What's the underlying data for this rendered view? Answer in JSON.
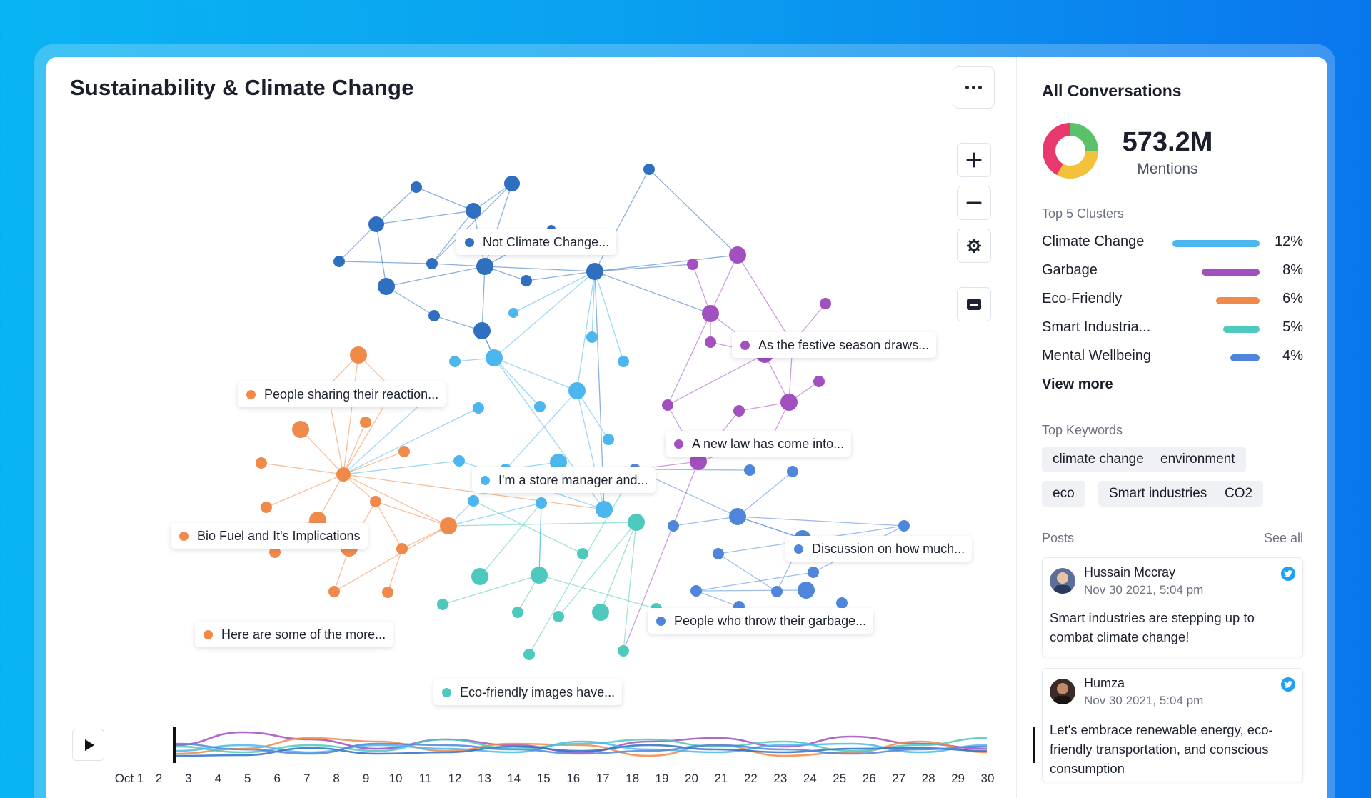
{
  "page": {
    "title": "Sustainability & Climate Change",
    "more_icon": "more-horizontal-icon"
  },
  "toolbar": {
    "zoom_in_icon": "plus-icon",
    "zoom_out_icon": "minus-icon",
    "settings_icon": "gear-icon",
    "legend_icon": "legend-card-icon"
  },
  "graph": {
    "labels": [
      {
        "text": "Not Climate Change...",
        "color": "#2f6fc0"
      },
      {
        "text": "As the festive season draws...",
        "color": "#a24fc0"
      },
      {
        "text": "People sharing their reaction...",
        "color": "#f08a4b"
      },
      {
        "text": "A new law has come into...",
        "color": "#a24fc0"
      },
      {
        "text": "I'm a store manager and...",
        "color": "#4bb7ee"
      },
      {
        "text": "Bio Fuel and It's Implications",
        "color": "#f08a4b"
      },
      {
        "text": "Discussion on how much...",
        "color": "#4f86dc"
      },
      {
        "text": "Here are some of the more...",
        "color": "#f08a4b"
      },
      {
        "text": "People who throw their garbage...",
        "color": "#4f86dc"
      },
      {
        "text": "Eco-friendly images have...",
        "color": "#4ec9bd"
      }
    ]
  },
  "timeline": {
    "play_icon": "play-icon",
    "ticks": [
      "Oct 1",
      "2",
      "3",
      "4",
      "5",
      "6",
      "7",
      "8",
      "9",
      "10",
      "11",
      "12",
      "13",
      "14",
      "15",
      "16",
      "17",
      "18",
      "19",
      "20",
      "21",
      "22",
      "23",
      "24",
      "25",
      "26",
      "27",
      "28",
      "29",
      "30"
    ]
  },
  "sidebar": {
    "title": "All Conversations",
    "total": "573.2M",
    "total_label": "Mentions",
    "donut": [
      {
        "color": "#5bc26a",
        "value": 25
      },
      {
        "color": "#f4c23a",
        "value": 33
      },
      {
        "color": "#e8386e",
        "value": 42
      }
    ],
    "clusters_label": "Top 5 Clusters",
    "clusters": [
      {
        "name": "Climate Change",
        "pct": "12%",
        "value": 12,
        "color": "#4bb7ee"
      },
      {
        "name": "Garbage",
        "pct": "8%",
        "value": 8,
        "color": "#a24fc0"
      },
      {
        "name": "Eco-Friendly",
        "pct": "6%",
        "value": 6,
        "color": "#f08a4b"
      },
      {
        "name": "Smart Industria...",
        "pct": "5%",
        "value": 5,
        "color": "#4ec9bd"
      },
      {
        "name": "Mental Wellbeing",
        "pct": "4%",
        "value": 4,
        "color": "#4f86dc"
      }
    ],
    "view_more": "View more",
    "keywords_label": "Top Keywords",
    "keywords": [
      "climate change",
      "environment",
      "eco",
      "Smart industries",
      "CO2"
    ],
    "posts_label": "Posts",
    "see_all": "See all",
    "posts": [
      {
        "user": "Hussain Mccray",
        "date": "Nov 30 2021, 5:04 pm",
        "text": "Smart industries are stepping up to combat climate change!",
        "icon": "twitter-icon"
      },
      {
        "user": "Humza",
        "date": "Nov 30 2021, 5:04 pm",
        "text": "Let's embrace renewable energy, eco-friendly transportation, and conscious consumption",
        "icon": "twitter-icon"
      }
    ]
  }
}
